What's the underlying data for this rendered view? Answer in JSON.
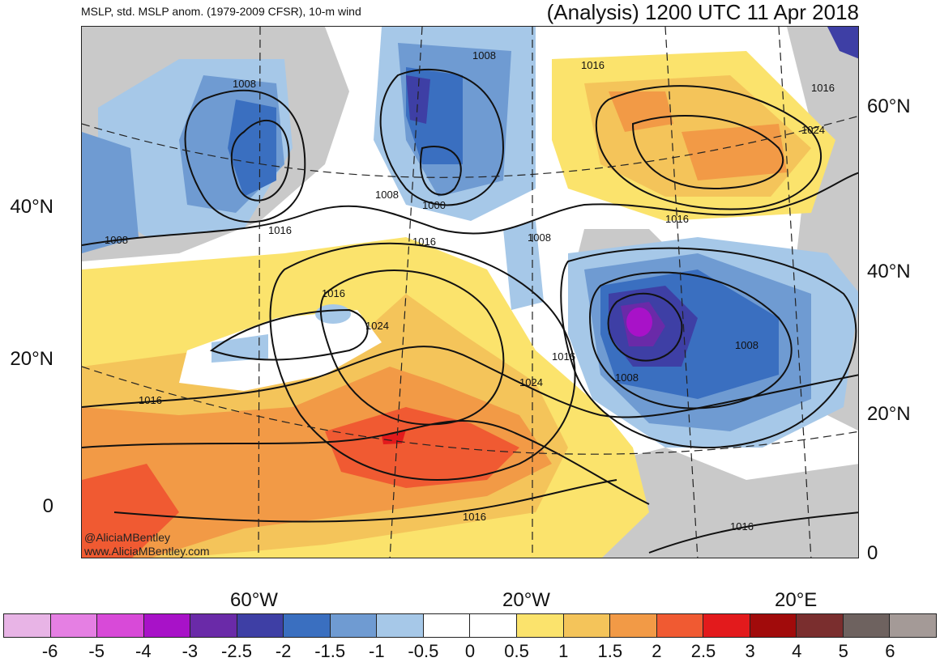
{
  "header": {
    "left_title": "MSLP, std. MSLP anom. (1979-2009 CFSR), 10-m wind",
    "right_title": "(Analysis) 1200 UTC 11 Apr 2018"
  },
  "map": {
    "lat_labels_left": [
      "40°N",
      "20°N",
      "0"
    ],
    "lat_labels_right": [
      "60°N",
      "40°N",
      "20°N",
      "0"
    ],
    "lon_labels": [
      "60°W",
      "20°W",
      "20°E"
    ],
    "isobar_labels": [
      "1008",
      "1008",
      "1016",
      "1008",
      "1000",
      "1016",
      "1008",
      "1016",
      "1016",
      "1024",
      "1016",
      "1016",
      "1008",
      "1016",
      "1024",
      "1016",
      "1024",
      "1016",
      "1008",
      "1008",
      "1016"
    ],
    "credits": [
      "@AliciaMBentley",
      "www.AliciaMBentley.com"
    ]
  },
  "colorbar": {
    "colors": [
      "#e8b4e6",
      "#e57fe3",
      "#d84ad8",
      "#a812c8",
      "#6a2aa8",
      "#3e3fa5",
      "#3a6fc0",
      "#6f9bd2",
      "#a6c8e8",
      "#ffffff",
      "#ffffff",
      "#fbe36c",
      "#f4c45a",
      "#f29a46",
      "#f05a32",
      "#e31a1c",
      "#a10b0b",
      "#7a2e2e",
      "#6e625f",
      "#a49a97"
    ],
    "labels": [
      "-6",
      "-5",
      "-4",
      "-3",
      "-2.5",
      "-2",
      "-1.5",
      "-1",
      "-0.5",
      "0",
      "0.5",
      "1",
      "1.5",
      "2",
      "2.5",
      "3",
      "4",
      "5",
      "6"
    ]
  }
}
